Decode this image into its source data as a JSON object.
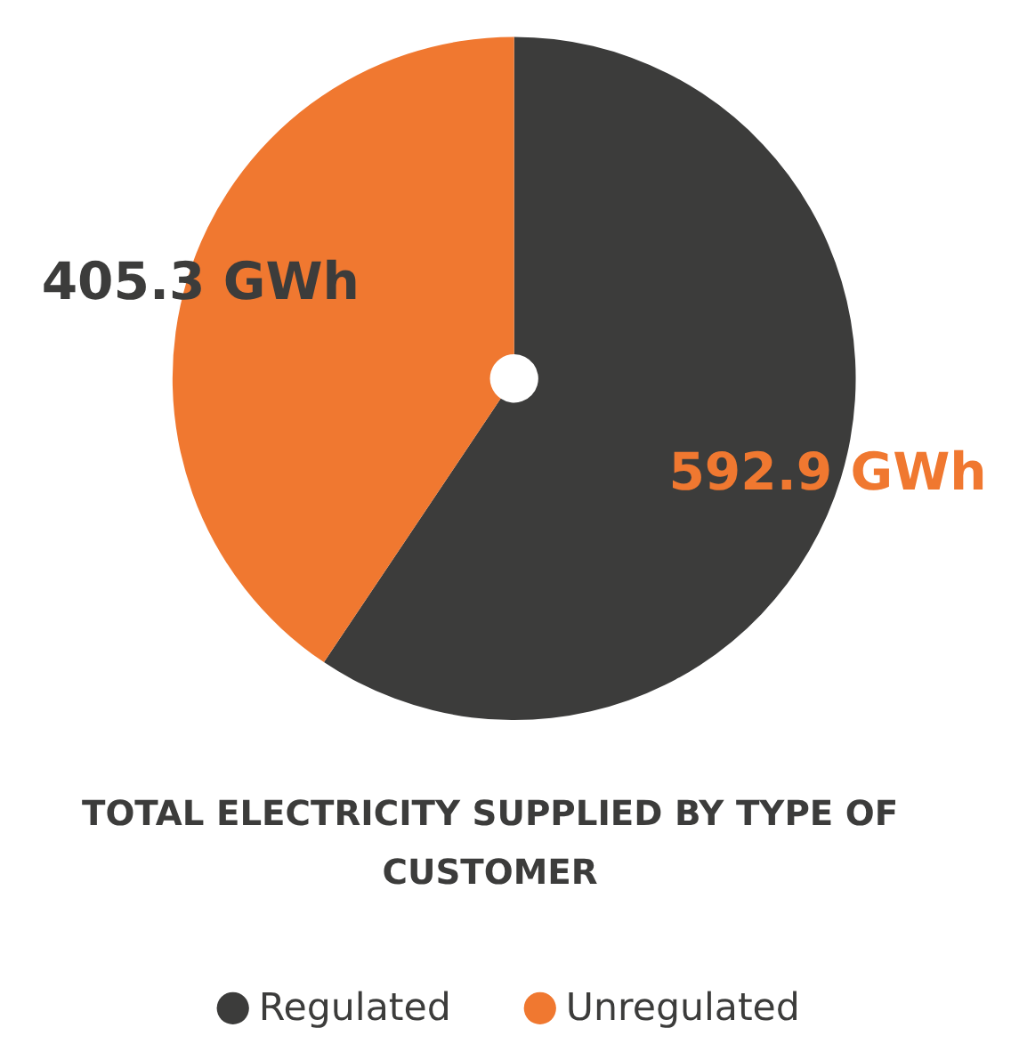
{
  "chart_data": {
    "type": "pie",
    "title": "TOTAL ELECTRICITY SUPPLIED BY TYPE OF CUSTOMER",
    "categories": [
      "Regulated",
      "Unregulated"
    ],
    "values": [
      592.9,
      405.3
    ],
    "colors": [
      "#3c3c3b",
      "#f07830"
    ],
    "value_labels": [
      "592.9 GWh",
      "405.3 GWh"
    ],
    "legend": "bottom"
  }
}
